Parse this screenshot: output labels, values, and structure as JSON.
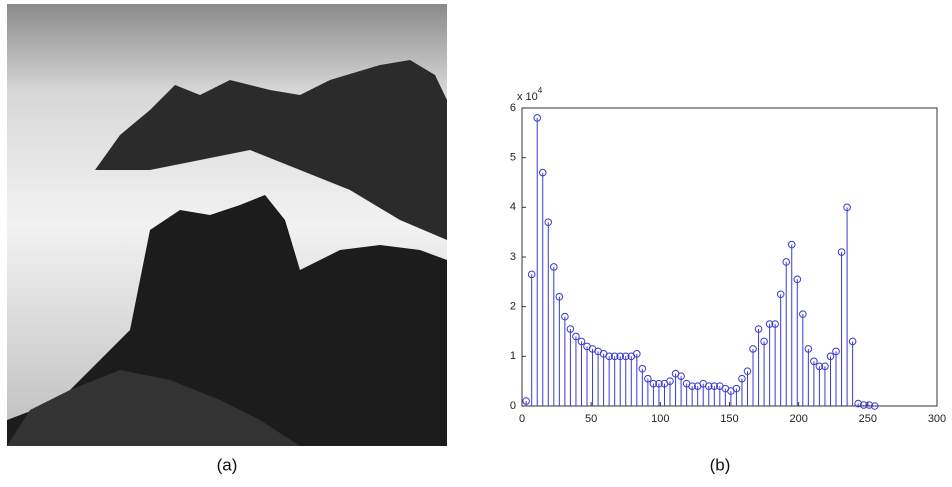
{
  "image": {
    "caption": "(a)"
  },
  "chart_data": {
    "type": "stem",
    "caption": "(b)",
    "y_scale": "x 10",
    "y_scale_exponent": "4",
    "x": [
      3,
      7,
      11,
      15,
      19,
      23,
      27,
      31,
      35,
      39,
      43,
      47,
      51,
      55,
      59,
      63,
      67,
      71,
      75,
      79,
      83,
      87,
      91,
      95,
      99,
      103,
      107,
      111,
      115,
      119,
      123,
      127,
      131,
      135,
      139,
      143,
      147,
      151,
      155,
      159,
      163,
      167,
      171,
      175,
      179,
      183,
      187,
      191,
      195,
      199,
      203,
      207,
      211,
      215,
      219,
      223,
      227,
      231,
      235,
      239,
      243,
      247,
      251,
      255
    ],
    "values": [
      0.1,
      2.65,
      5.8,
      4.7,
      3.7,
      2.8,
      2.2,
      1.8,
      1.55,
      1.4,
      1.3,
      1.2,
      1.15,
      1.1,
      1.05,
      1.0,
      1.0,
      1.0,
      1.0,
      1.0,
      1.05,
      0.75,
      0.55,
      0.45,
      0.45,
      0.45,
      0.5,
      0.65,
      0.6,
      0.45,
      0.4,
      0.4,
      0.45,
      0.4,
      0.4,
      0.4,
      0.35,
      0.3,
      0.35,
      0.55,
      0.7,
      1.15,
      1.55,
      1.3,
      1.65,
      1.65,
      2.25,
      2.9,
      3.25,
      2.55,
      1.85,
      1.15,
      0.9,
      0.8,
      0.8,
      1.0,
      1.1,
      3.1,
      4.0,
      1.3,
      0.05,
      0.02,
      0.02,
      0
    ],
    "color": "#3a3acf",
    "xlim": [
      0,
      300
    ],
    "xticks": [
      0,
      50,
      100,
      150,
      200,
      250,
      300
    ],
    "ylim": [
      0,
      6
    ],
    "yticks": [
      0,
      1,
      2,
      3,
      4,
      5,
      6
    ]
  }
}
